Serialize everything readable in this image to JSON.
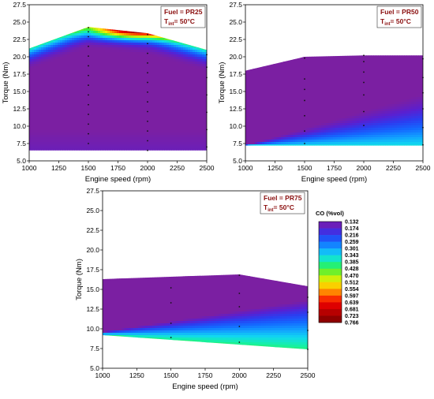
{
  "chart_data": [
    {
      "type": "heatmap",
      "xlabel": "Engine speed (rpm)",
      "ylabel": "Torque (Nm)",
      "xlim": [
        1000,
        2500
      ],
      "ylim": [
        5.0,
        27.5
      ],
      "xticks": [
        "1000",
        "1250",
        "1500",
        "1750",
        "2000",
        "2250",
        "2500"
      ],
      "yticks": [
        "5.0",
        "7.5",
        "10.0",
        "12.5",
        "15.0",
        "17.5",
        "20.0",
        "22.5",
        "25.0",
        "27.5"
      ],
      "annotation": {
        "fuel": "Fuel = PR25",
        "tint_main": "T",
        "tint_sub": "int",
        "tint_rest": "= 50°C"
      },
      "top_boundary": [
        [
          1000,
          21.2
        ],
        [
          1500,
          24.3
        ],
        [
          2000,
          23.4
        ],
        [
          2500,
          21.0
        ]
      ],
      "bottom_boundary": [
        [
          1000,
          6.5
        ],
        [
          2500,
          6.5
        ]
      ],
      "peak": {
        "x": 1900,
        "y": 23.8
      },
      "value_range": [
        0.132,
        0.6
      ],
      "points": [
        {
          "x": 1500,
          "y": 7.5
        },
        {
          "x": 1500,
          "y": 8.9
        },
        {
          "x": 1500,
          "y": 10.3
        },
        {
          "x": 1500,
          "y": 11.7
        },
        {
          "x": 1500,
          "y": 13.1
        },
        {
          "x": 1500,
          "y": 14.5
        },
        {
          "x": 1500,
          "y": 15.9
        },
        {
          "x": 1500,
          "y": 17.3
        },
        {
          "x": 1500,
          "y": 18.7
        },
        {
          "x": 1500,
          "y": 20.1
        },
        {
          "x": 1500,
          "y": 21.5
        },
        {
          "x": 1500,
          "y": 22.9
        },
        {
          "x": 1500,
          "y": 23.6
        },
        {
          "x": 1500,
          "y": 24.2
        },
        {
          "x": 2000,
          "y": 6.5
        },
        {
          "x": 2000,
          "y": 7.9
        },
        {
          "x": 2000,
          "y": 9.3
        },
        {
          "x": 2000,
          "y": 10.7
        },
        {
          "x": 2000,
          "y": 12.1
        },
        {
          "x": 2000,
          "y": 13.5
        },
        {
          "x": 2000,
          "y": 14.9
        },
        {
          "x": 2000,
          "y": 16.3
        },
        {
          "x": 2000,
          "y": 17.7
        },
        {
          "x": 2000,
          "y": 19.1
        },
        {
          "x": 2000,
          "y": 20.5
        },
        {
          "x": 2000,
          "y": 21.9
        },
        {
          "x": 2000,
          "y": 23.2
        },
        {
          "x": 2500,
          "y": 7.0
        },
        {
          "x": 2500,
          "y": 9.5
        },
        {
          "x": 2500,
          "y": 12.0
        },
        {
          "x": 2500,
          "y": 14.5
        },
        {
          "x": 2500,
          "y": 17.0
        },
        {
          "x": 2500,
          "y": 18.5
        },
        {
          "x": 2500,
          "y": 20.3
        }
      ]
    },
    {
      "type": "heatmap",
      "xlabel": "Engine speed (rpm)",
      "ylabel": "Torque (Nm)",
      "xlim": [
        1000,
        2500
      ],
      "ylim": [
        5.0,
        27.5
      ],
      "xticks": [
        "1000",
        "1250",
        "1500",
        "1750",
        "2000",
        "2250",
        "2500"
      ],
      "yticks": [
        "5.0",
        "7.5",
        "10.0",
        "12.5",
        "15.0",
        "17.5",
        "20.0",
        "22.5",
        "25.0",
        "27.5"
      ],
      "annotation": {
        "fuel": "Fuel = PR50",
        "tint_main": "T",
        "tint_sub": "int",
        "tint_rest": "= 50°C"
      },
      "top_boundary": [
        [
          1000,
          18.0
        ],
        [
          1500,
          20.0
        ],
        [
          2000,
          20.2
        ],
        [
          2500,
          20.2
        ]
      ],
      "bottom_boundary": [
        [
          1000,
          7.2
        ],
        [
          2500,
          7.2
        ]
      ],
      "value_range": [
        0.132,
        0.35
      ],
      "points": [
        {
          "x": 1500,
          "y": 7.5
        },
        {
          "x": 1500,
          "y": 9.3
        },
        {
          "x": 1500,
          "y": 11.5
        },
        {
          "x": 1500,
          "y": 13.7
        },
        {
          "x": 1500,
          "y": 15.3
        },
        {
          "x": 1500,
          "y": 16.8
        },
        {
          "x": 1500,
          "y": 19.8
        },
        {
          "x": 2000,
          "y": 10.1
        },
        {
          "x": 2000,
          "y": 12.1
        },
        {
          "x": 2000,
          "y": 14.5
        },
        {
          "x": 2000,
          "y": 16.3
        },
        {
          "x": 2000,
          "y": 17.8
        },
        {
          "x": 2000,
          "y": 19.3
        },
        {
          "x": 2000,
          "y": 20.2
        },
        {
          "x": 2500,
          "y": 7.3
        },
        {
          "x": 2500,
          "y": 9.8
        },
        {
          "x": 2500,
          "y": 12.5
        },
        {
          "x": 2500,
          "y": 14.8
        },
        {
          "x": 2500,
          "y": 17.0
        },
        {
          "x": 2500,
          "y": 19.7
        }
      ]
    },
    {
      "type": "heatmap",
      "xlabel": "Engine speed (rpm)",
      "ylabel": "Torque (Nm)",
      "xlim": [
        1000,
        2500
      ],
      "ylim": [
        5.0,
        27.5
      ],
      "xticks": [
        "1000",
        "1250",
        "1500",
        "1750",
        "2000",
        "2250",
        "2500"
      ],
      "yticks": [
        "5.0",
        "7.5",
        "10.0",
        "12.5",
        "15.0",
        "17.5",
        "20.0",
        "22.5",
        "25.0",
        "27.5"
      ],
      "annotation": {
        "fuel": "Fuel = PR75",
        "tint_main": "T",
        "tint_sub": "int",
        "tint_rest": "= 50°C"
      },
      "top_boundary": [
        [
          1000,
          16.3
        ],
        [
          2000,
          16.9
        ],
        [
          2500,
          15.4
        ]
      ],
      "bottom_boundary": [
        [
          1000,
          9.2
        ],
        [
          2500,
          7.4
        ]
      ],
      "value_range": [
        0.132,
        0.4
      ],
      "points": [
        {
          "x": 1500,
          "y": 8.9
        },
        {
          "x": 1500,
          "y": 10.7
        },
        {
          "x": 1500,
          "y": 13.3
        },
        {
          "x": 1500,
          "y": 15.2
        },
        {
          "x": 2000,
          "y": 8.3
        },
        {
          "x": 2000,
          "y": 10.3
        },
        {
          "x": 2000,
          "y": 12.8
        },
        {
          "x": 2000,
          "y": 14.5
        },
        {
          "x": 2000,
          "y": 16.8
        },
        {
          "x": 2500,
          "y": 7.4
        },
        {
          "x": 2500,
          "y": 9.8
        },
        {
          "x": 2500,
          "y": 12.1
        },
        {
          "x": 2500,
          "y": 14.0
        }
      ]
    }
  ],
  "colorbar": {
    "title": "CO (%vol)",
    "levels": [
      "0.132",
      "0.174",
      "0.216",
      "0.259",
      "0.301",
      "0.343",
      "0.385",
      "0.428",
      "0.470",
      "0.512",
      "0.554",
      "0.597",
      "0.639",
      "0.681",
      "0.723",
      "0.766"
    ],
    "colors": [
      "#7b1fa2",
      "#5a1fd0",
      "#2b3df0",
      "#1468ff",
      "#12a0ff",
      "#11d8f0",
      "#15f0a8",
      "#36f040",
      "#a8f014",
      "#f6f000",
      "#ffae00",
      "#ff5a00",
      "#f00000",
      "#cc0000",
      "#a00000",
      "#7d0000"
    ]
  }
}
